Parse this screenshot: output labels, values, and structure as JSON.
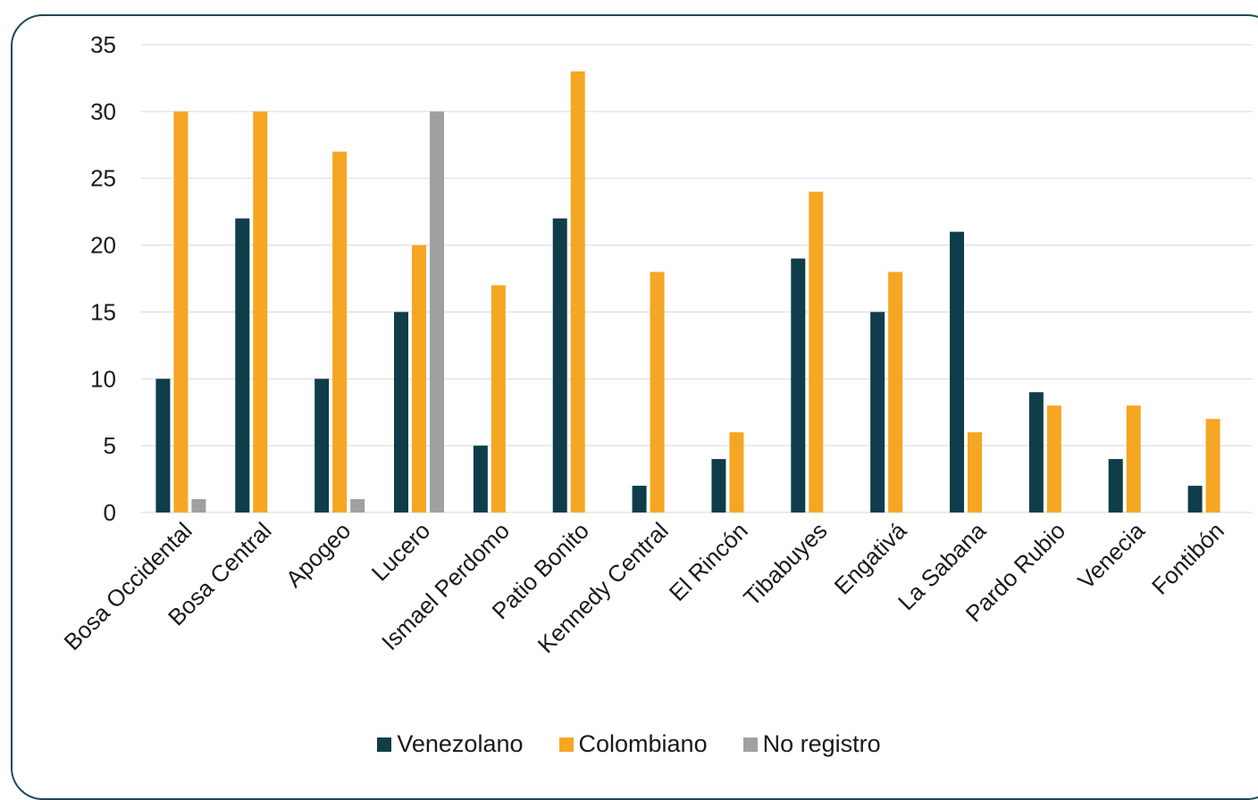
{
  "colors": {
    "frame": "#1e4a55",
    "grid": "#d9d9d9",
    "text": "#1a1a1a"
  },
  "chart_data": {
    "type": "bar",
    "title": "",
    "xlabel": "",
    "ylabel": "",
    "ylim": [
      0,
      35
    ],
    "yticks": [
      0,
      5,
      10,
      15,
      20,
      25,
      30,
      35
    ],
    "grid": true,
    "legend_position": "bottom",
    "categories": [
      "Bosa Occidental",
      "Bosa Central",
      "Apogeo",
      "Lucero",
      "Ismael Perdomo",
      "Patio Bonito",
      "Kennedy Central",
      "El Rincón",
      "Tibabuyes",
      "Engativá",
      "La Sabana",
      "Pardo Rubio",
      "Venecia",
      "Fontibón"
    ],
    "series": [
      {
        "name": "Venezolano",
        "color": "#0f3d4a",
        "values": [
          10,
          22,
          10,
          15,
          5,
          22,
          2,
          4,
          19,
          15,
          21,
          9,
          4,
          2
        ]
      },
      {
        "name": "Colombiano",
        "color": "#f5a623",
        "values": [
          30,
          30,
          27,
          20,
          17,
          33,
          18,
          6,
          24,
          18,
          6,
          8,
          8,
          7
        ]
      },
      {
        "name": "No registro",
        "color": "#a0a0a0",
        "values": [
          1,
          0,
          1,
          30,
          0,
          0,
          0,
          0,
          0,
          0,
          0,
          0,
          0,
          0
        ]
      }
    ]
  }
}
